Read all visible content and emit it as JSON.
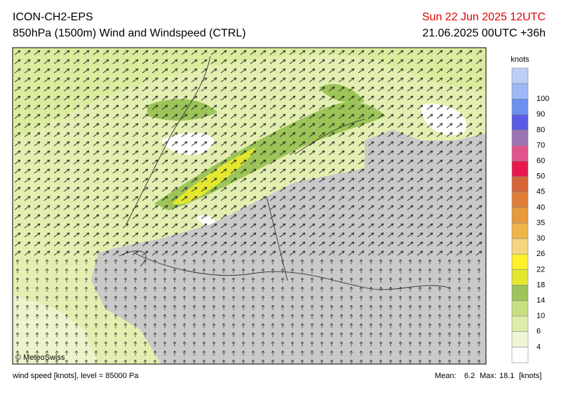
{
  "header": {
    "model": "ICON-CH2-EPS",
    "title": "850hPa (1500m) Wind and Windspeed (CTRL)",
    "valid_time": "Sun 22 Jun 2025 12UTC",
    "run": "21.06.2025 00UTC +36h"
  },
  "map": {
    "copyright": "© MeteoSwiss"
  },
  "legend": {
    "unit": "knots",
    "labels": [
      4,
      6,
      10,
      14,
      18,
      22,
      26,
      30,
      35,
      40,
      45,
      50,
      60,
      70,
      80,
      90,
      100
    ],
    "colors": [
      "#ffffff",
      "#eef6d6",
      "#dcedaa",
      "#c7df80",
      "#9cc458",
      "#e3e82e",
      "#fff22c",
      "#f5d57e",
      "#efb54a",
      "#e9993a",
      "#e07e38",
      "#d7653a",
      "#e8174c",
      "#e0548c",
      "#9b74b4",
      "#5a5ce6",
      "#6c90f0",
      "#9cb8f6",
      "#bccff8"
    ]
  },
  "footer": {
    "description": "wind speed [knots], level = 85000 Pa",
    "mean_label": "Mean:",
    "mean": "6.2",
    "max_label": "Max:",
    "max": "18.1",
    "unit": "[knots]"
  }
}
